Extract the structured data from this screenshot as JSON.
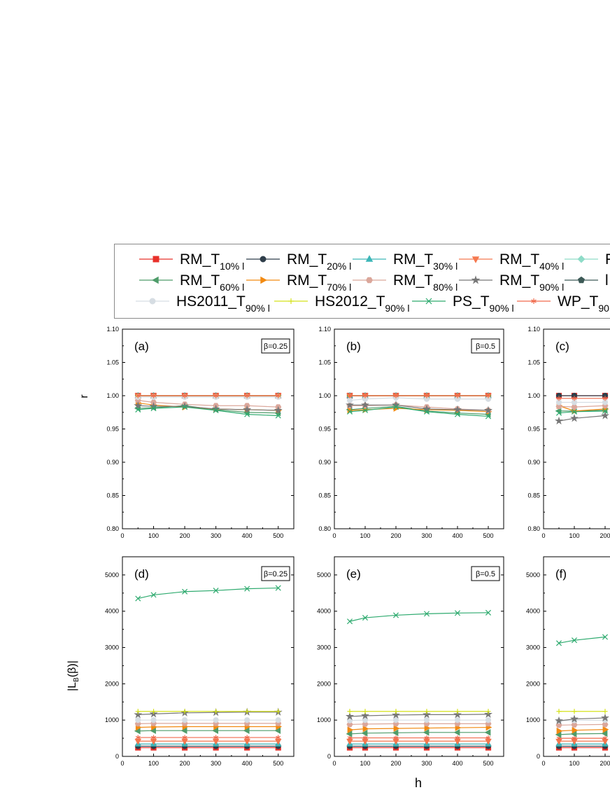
{
  "figure": {
    "y_label_top": "r",
    "y_label_bottom": "|L_B(β)|",
    "x_label": "h"
  },
  "legend": {
    "entries": [
      {
        "prefix": "RM_T",
        "sub": "10% l",
        "color": "#e8302a",
        "marker": "square"
      },
      {
        "prefix": "RM_T",
        "sub": "20% l",
        "color": "#2f3e4a",
        "marker": "circle"
      },
      {
        "prefix": "RM_T",
        "sub": "30% l",
        "color": "#3cb6b8",
        "marker": "triangle-up"
      },
      {
        "prefix": "RM_T",
        "sub": "40% l",
        "color": "#f5784f",
        "marker": "triangle-down"
      },
      {
        "prefix": "R",
        "sub": "",
        "color": "#8fdcc8",
        "marker": "diamond"
      },
      {
        "prefix": "RM_T",
        "sub": "60% l",
        "color": "#4f9c6a",
        "marker": "triangle-left"
      },
      {
        "prefix": "RM_T",
        "sub": "70% l",
        "color": "#f28a12",
        "marker": "triangle-right"
      },
      {
        "prefix": "RM_T",
        "sub": "80% l",
        "color": "#dba79b",
        "marker": "hexagon"
      },
      {
        "prefix": "RM_T",
        "sub": "90% l",
        "color": "#777777",
        "marker": "star"
      },
      {
        "prefix": "l",
        "sub": "",
        "color": "#3d5a57",
        "marker": "pentagon"
      },
      {
        "prefix": "HS2011_T",
        "sub": "90% l",
        "color": "#d6dde3",
        "marker": "circle"
      },
      {
        "prefix": "HS2012_T",
        "sub": "90% l",
        "color": "#d4e21a",
        "marker": "plus"
      },
      {
        "prefix": "PS_T",
        "sub": "90% l",
        "color": "#2daa6e",
        "marker": "x"
      },
      {
        "prefix": "WP_T",
        "sub": "90",
        "color": "#f06a4c",
        "marker": "asterisk"
      }
    ]
  },
  "panels": [
    {
      "label": "(a)",
      "beta": "β=0.25"
    },
    {
      "label": "(b)",
      "beta": "β=0.5"
    },
    {
      "label": "(c)",
      "beta": ""
    },
    {
      "label": "(d)",
      "beta": "β=0.25"
    },
    {
      "label": "(e)",
      "beta": "β=0.5"
    },
    {
      "label": "(f)",
      "beta": ""
    }
  ],
  "chart_data": [
    {
      "type": "line",
      "panel": "(a)",
      "ylabel": "r",
      "xlabel": "h",
      "x": [
        50,
        100,
        200,
        300,
        400,
        500
      ],
      "xlim": [
        0,
        550
      ],
      "ylim": [
        0.8,
        1.1
      ],
      "xticks": [
        0,
        100,
        200,
        300,
        400,
        500
      ],
      "yticks": [
        0.8,
        0.85,
        0.9,
        0.95,
        1.0,
        1.05,
        1.1
      ],
      "annotation": "β=0.25",
      "series": [
        {
          "name": "RM_T10% l",
          "values": [
            1.0,
            1.0,
            1.0,
            1.0,
            1.0,
            1.0
          ]
        },
        {
          "name": "RM_T20% l",
          "values": [
            1.0,
            1.0,
            1.0,
            1.0,
            1.0,
            1.0
          ]
        },
        {
          "name": "RM_T30% l",
          "values": [
            1.0,
            1.0,
            1.0,
            1.0,
            1.0,
            1.0
          ]
        },
        {
          "name": "RM_T40% l",
          "values": [
            1.0,
            1.0,
            1.0,
            1.0,
            1.0,
            1.0
          ]
        },
        {
          "name": "RM_T60% l",
          "values": [
            0.981,
            0.982,
            0.985,
            0.979,
            0.975,
            0.974
          ]
        },
        {
          "name": "RM_T70% l",
          "values": [
            0.989,
            0.986,
            0.983,
            0.98,
            0.979,
            0.978
          ]
        },
        {
          "name": "RM_T80% l",
          "values": [
            0.993,
            0.99,
            0.987,
            0.985,
            0.985,
            0.983
          ]
        },
        {
          "name": "RM_T90% l",
          "values": [
            0.985,
            0.984,
            0.984,
            0.98,
            0.979,
            0.978
          ]
        },
        {
          "name": "HS2011_T90% l",
          "values": [
            0.998,
            0.998,
            0.998,
            0.998,
            0.998,
            0.998
          ]
        },
        {
          "name": "HS2012_T90% l",
          "values": [
            1.0,
            1.0,
            1.0,
            1.0,
            1.0,
            1.0
          ]
        },
        {
          "name": "PS_T90% l",
          "values": [
            0.979,
            0.981,
            0.983,
            0.978,
            0.972,
            0.97
          ]
        },
        {
          "name": "WP_T90",
          "values": [
            1.0,
            1.0,
            1.0,
            1.0,
            1.0,
            1.0
          ]
        }
      ]
    },
    {
      "type": "line",
      "panel": "(b)",
      "ylabel": "r",
      "xlabel": "h",
      "x": [
        50,
        100,
        200,
        300,
        400,
        500
      ],
      "xlim": [
        0,
        550
      ],
      "ylim": [
        0.8,
        1.1
      ],
      "xticks": [
        0,
        100,
        200,
        300,
        400,
        500
      ],
      "yticks": [
        0.8,
        0.85,
        0.9,
        0.95,
        1.0,
        1.05,
        1.1
      ],
      "annotation": "β=0.5",
      "series": [
        {
          "name": "RM_T10% l",
          "values": [
            1.0,
            1.0,
            1.0,
            1.0,
            1.0,
            1.0
          ]
        },
        {
          "name": "RM_T20% l",
          "values": [
            1.0,
            1.0,
            1.0,
            1.0,
            1.0,
            1.0
          ]
        },
        {
          "name": "RM_T30% l",
          "values": [
            1.0,
            1.0,
            1.0,
            1.0,
            1.0,
            1.0
          ]
        },
        {
          "name": "RM_T40% l",
          "values": [
            1.0,
            1.0,
            1.0,
            1.0,
            1.0,
            1.0
          ]
        },
        {
          "name": "RM_T60% l",
          "values": [
            0.979,
            0.981,
            0.984,
            0.977,
            0.974,
            0.972
          ]
        },
        {
          "name": "RM_T70% l",
          "values": [
            0.978,
            0.979,
            0.981,
            0.979,
            0.978,
            0.976
          ]
        },
        {
          "name": "RM_T80% l",
          "values": [
            0.985,
            0.985,
            0.986,
            0.983,
            0.98,
            0.978
          ]
        },
        {
          "name": "RM_T90% l",
          "values": [
            0.986,
            0.986,
            0.986,
            0.98,
            0.979,
            0.978
          ]
        },
        {
          "name": "HS2011_T90% l",
          "values": [
            0.993,
            0.995,
            0.997,
            0.995,
            0.995,
            0.995
          ]
        },
        {
          "name": "HS2012_T90% l",
          "values": [
            1.0,
            1.0,
            1.0,
            1.0,
            1.0,
            1.0
          ]
        },
        {
          "name": "PS_T90% l",
          "values": [
            0.976,
            0.978,
            0.983,
            0.976,
            0.972,
            0.969
          ]
        },
        {
          "name": "WP_T90",
          "values": [
            1.0,
            1.0,
            1.0,
            1.0,
            1.0,
            1.0
          ]
        }
      ]
    },
    {
      "type": "line",
      "panel": "(c)",
      "ylabel": "r",
      "xlabel": "h",
      "x": [
        50,
        100,
        200
      ],
      "xlim": [
        0,
        550
      ],
      "ylim": [
        0.8,
        1.1
      ],
      "xticks": [
        0,
        100,
        200
      ],
      "yticks": [
        0.8,
        0.85,
        0.9,
        0.95,
        1.0,
        1.05,
        1.1
      ],
      "series": [
        {
          "name": "RM_T10% l",
          "values": [
            1.0,
            1.0,
            1.0
          ]
        },
        {
          "name": "RM_T20% l",
          "values": [
            1.0,
            1.0,
            1.0
          ]
        },
        {
          "name": "RM_T60% l",
          "values": [
            0.977,
            0.977,
            0.978
          ]
        },
        {
          "name": "RM_T70% l",
          "values": [
            0.985,
            0.977,
            0.98
          ]
        },
        {
          "name": "RM_T80% l",
          "values": [
            0.984,
            0.983,
            0.985
          ]
        },
        {
          "name": "RM_T90% l",
          "values": [
            0.962,
            0.966,
            0.97
          ]
        },
        {
          "name": "HS2011_T90% l",
          "values": [
            0.99,
            0.99,
            0.99
          ]
        },
        {
          "name": "PS_T90% l",
          "values": [
            0.974,
            0.976,
            0.977
          ]
        },
        {
          "name": "WP_T90",
          "values": [
            0.996,
            0.996,
            0.996
          ]
        }
      ]
    },
    {
      "type": "line",
      "panel": "(d)",
      "ylabel": "|L_B(β)|",
      "xlabel": "h",
      "x": [
        50,
        100,
        200,
        300,
        400,
        500
      ],
      "xlim": [
        0,
        550
      ],
      "ylim": [
        0,
        5500
      ],
      "xticks": [
        0,
        100,
        200,
        300,
        400,
        500
      ],
      "yticks": [
        0,
        1000,
        2000,
        3000,
        4000,
        5000
      ],
      "annotation": "β=0.25",
      "series": [
        {
          "name": "RM_T10% l",
          "values": [
            240,
            240,
            240,
            240,
            240,
            240
          ]
        },
        {
          "name": "RM_T20% l",
          "values": [
            280,
            280,
            280,
            280,
            280,
            280
          ]
        },
        {
          "name": "RM_T30% l",
          "values": [
            340,
            340,
            340,
            340,
            340,
            340
          ]
        },
        {
          "name": "RM_T40% l",
          "values": [
            420,
            420,
            420,
            420,
            420,
            420
          ]
        },
        {
          "name": "WP_T90",
          "values": [
            520,
            520,
            520,
            520,
            520,
            520
          ]
        },
        {
          "name": "RM_T60% l",
          "values": [
            700,
            710,
            710,
            710,
            710,
            710
          ]
        },
        {
          "name": "RM_T70% l",
          "values": [
            800,
            810,
            820,
            820,
            820,
            820
          ]
        },
        {
          "name": "RM_T80% l",
          "values": [
            900,
            910,
            910,
            910,
            910,
            910
          ]
        },
        {
          "name": "HS2011_T90% l",
          "values": [
            1000,
            1000,
            1000,
            1000,
            1000,
            1000
          ]
        },
        {
          "name": "RM_T90% l",
          "values": [
            1150,
            1170,
            1200,
            1210,
            1220,
            1220
          ]
        },
        {
          "name": "HS2012_T90% l",
          "values": [
            1240,
            1240,
            1240,
            1240,
            1240,
            1240
          ]
        },
        {
          "name": "PS_T90% l",
          "values": [
            4350,
            4450,
            4540,
            4570,
            4620,
            4640
          ]
        }
      ]
    },
    {
      "type": "line",
      "panel": "(e)",
      "ylabel": "|L_B(β)|",
      "xlabel": "h",
      "x": [
        50,
        100,
        200,
        300,
        400,
        500
      ],
      "xlim": [
        0,
        550
      ],
      "ylim": [
        0,
        5500
      ],
      "xticks": [
        0,
        100,
        200,
        300,
        400,
        500
      ],
      "yticks": [
        0,
        1000,
        2000,
        3000,
        4000,
        5000
      ],
      "annotation": "β=0.5",
      "series": [
        {
          "name": "RM_T10% l",
          "values": [
            240,
            240,
            240,
            240,
            240,
            240
          ]
        },
        {
          "name": "RM_T20% l",
          "values": [
            280,
            280,
            280,
            280,
            280,
            280
          ]
        },
        {
          "name": "RM_T30% l",
          "values": [
            340,
            340,
            340,
            340,
            340,
            340
          ]
        },
        {
          "name": "RM_T40% l",
          "values": [
            420,
            420,
            420,
            420,
            420,
            420
          ]
        },
        {
          "name": "WP_T90",
          "values": [
            510,
            510,
            510,
            510,
            510,
            510
          ]
        },
        {
          "name": "RM_T60% l",
          "values": [
            620,
            640,
            650,
            660,
            660,
            660
          ]
        },
        {
          "name": "RM_T70% l",
          "values": [
            730,
            760,
            770,
            780,
            790,
            800
          ]
        },
        {
          "name": "RM_T80% l",
          "values": [
            880,
            890,
            900,
            900,
            900,
            900
          ]
        },
        {
          "name": "HS2011_T90% l",
          "values": [
            990,
            1000,
            1000,
            1000,
            1000,
            1000
          ]
        },
        {
          "name": "RM_T90% l",
          "values": [
            1100,
            1120,
            1140,
            1150,
            1150,
            1160
          ]
        },
        {
          "name": "HS2012_T90% l",
          "values": [
            1240,
            1240,
            1240,
            1240,
            1240,
            1240
          ]
        },
        {
          "name": "PS_T90% l",
          "values": [
            3720,
            3820,
            3890,
            3930,
            3950,
            3960
          ]
        }
      ]
    },
    {
      "type": "line",
      "panel": "(f)",
      "ylabel": "|L_B(β)|",
      "xlabel": "h",
      "x": [
        50,
        100,
        200
      ],
      "xlim": [
        0,
        550
      ],
      "ylim": [
        0,
        5500
      ],
      "xticks": [
        0,
        100,
        200
      ],
      "yticks": [
        0,
        1000,
        2000,
        3000,
        4000,
        5000
      ],
      "series": [
        {
          "name": "RM_T10% l",
          "values": [
            240,
            240,
            240
          ]
        },
        {
          "name": "RM_T20% l",
          "values": [
            280,
            280,
            280
          ]
        },
        {
          "name": "RM_T30% l",
          "values": [
            340,
            340,
            340
          ]
        },
        {
          "name": "RM_T40% l",
          "values": [
            420,
            420,
            420
          ]
        },
        {
          "name": "WP_T90",
          "values": [
            500,
            500,
            500
          ]
        },
        {
          "name": "RM_T60% l",
          "values": [
            600,
            620,
            630
          ]
        },
        {
          "name": "RM_T70% l",
          "values": [
            700,
            720,
            740
          ]
        },
        {
          "name": "RM_T80% l",
          "values": [
            860,
            870,
            880
          ]
        },
        {
          "name": "HS2011_T90% l",
          "values": [
            980,
            990,
            1000
          ]
        },
        {
          "name": "RM_T90% l",
          "values": [
            980,
            1030,
            1060
          ]
        },
        {
          "name": "HS2012_T90% l",
          "values": [
            1240,
            1240,
            1240
          ]
        },
        {
          "name": "PS_T90% l",
          "values": [
            3120,
            3200,
            3290
          ]
        }
      ]
    }
  ]
}
